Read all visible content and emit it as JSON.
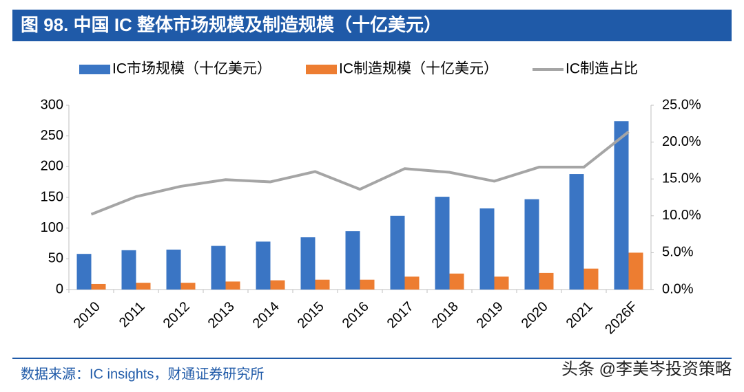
{
  "chart_data": {
    "type": "bar",
    "title": "图 98. 中国 IC 整体市场规模及制造规模（十亿美元）",
    "categories": [
      "2010",
      "2011",
      "2012",
      "2013",
      "2014",
      "2015",
      "2016",
      "2017",
      "2018",
      "2019",
      "2020",
      "2021",
      "2026F"
    ],
    "series": [
      {
        "name": "IC市场规模（十亿美元）",
        "color": "#3a75c4",
        "values": [
          58,
          64,
          65,
          71,
          78,
          85,
          95,
          120,
          151,
          132,
          147,
          188,
          274
        ]
      },
      {
        "name": "IC制造规模（十亿美元）",
        "color": "#ed7d31",
        "values": [
          9,
          11,
          11,
          13,
          15,
          16,
          16,
          21,
          26,
          21,
          27,
          34,
          60
        ]
      },
      {
        "name": "IC制造占比",
        "color": "#a5a5a5",
        "type": "line",
        "axis": "y2",
        "values": [
          10.2,
          12.6,
          14.0,
          14.9,
          14.6,
          16.0,
          13.6,
          16.4,
          15.9,
          14.7,
          16.6,
          16.6,
          21.4
        ]
      }
    ],
    "ylim": [
      0,
      300
    ],
    "yticks": [
      0,
      50,
      100,
      150,
      200,
      250,
      300
    ],
    "y2lim": [
      0,
      25
    ],
    "y2ticks": [
      {
        "value": 0,
        "label": "0.0%"
      },
      {
        "value": 5,
        "label": "5.0%"
      },
      {
        "value": 10,
        "label": "10.0%"
      },
      {
        "value": 15,
        "label": "15.0%"
      },
      {
        "value": 20,
        "label": "20.0%"
      },
      {
        "value": 25,
        "label": "25.0%"
      }
    ],
    "legend": "top",
    "source": "数据来源：IC insights，财通证券研究所",
    "watermark": "头条 @李美岑投资策略"
  }
}
